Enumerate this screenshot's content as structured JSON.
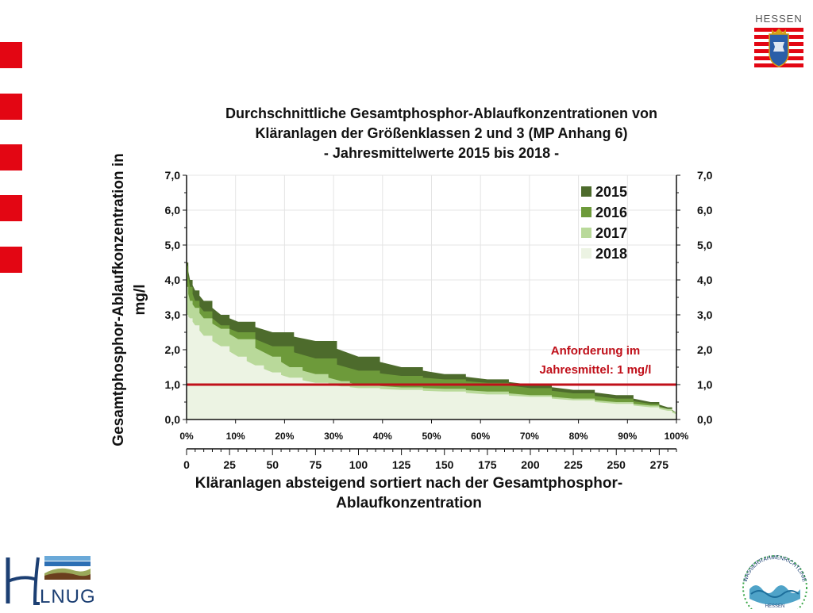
{
  "header": {
    "logo_word": "HESSEN"
  },
  "footer": {
    "hlnug_logo_text": "LNUG",
    "wrrl_logo_text": "WASSERRAHMENRICHTLINIE",
    "wrrl_bottom_text": "HESSEN"
  },
  "colors": {
    "y2015": "#4d6b2c",
    "y2016": "#6d9a3a",
    "y2017": "#b9d99a",
    "y2018": "#ecf3e3",
    "requirement_line": "#c0101a",
    "accent_red": "#e30613"
  },
  "chart_data": {
    "type": "area",
    "title_lines": [
      "Durchschnittliche Gesamtphosphor-Ablaufkonzentrationen von",
      "Kläranlagen der Größenklassen 2 und 3 (MP Anhang 6)",
      "- Jahresmittelwerte 2015 bis 2018 -"
    ],
    "ylabel_lines": [
      "Gesamtphosphor-Ablaufkonzentration in",
      "mg/l"
    ],
    "xlabel_lines": [
      "Kläranlagen absteigend sortiert nach der Gesamtphosphor-",
      "Ablaufkonzentration"
    ],
    "ylim": [
      0,
      7
    ],
    "yticks": [
      "0,0",
      "1,0",
      "2,0",
      "3,0",
      "4,0",
      "5,0",
      "6,0",
      "7,0"
    ],
    "xlim": [
      0,
      285
    ],
    "xticks_pct": [
      "0%",
      "10%",
      "20%",
      "30%",
      "40%",
      "50%",
      "60%",
      "70%",
      "80%",
      "90%",
      "100%"
    ],
    "xticks_count": [
      "0",
      "25",
      "50",
      "75",
      "100",
      "125",
      "150",
      "175",
      "200",
      "225",
      "250",
      "275"
    ],
    "grid": true,
    "legend_position": "top-right",
    "legend": [
      "2015",
      "2016",
      "2017",
      "2018"
    ],
    "series": [
      {
        "name": "2015",
        "x": [
          0,
          2,
          5,
          10,
          20,
          30,
          50,
          75,
          100,
          125,
          150,
          175,
          200,
          225,
          250,
          270,
          280,
          285
        ],
        "values": [
          4.5,
          4.0,
          3.7,
          3.4,
          3.0,
          2.8,
          2.5,
          2.25,
          1.8,
          1.5,
          1.3,
          1.15,
          1.0,
          0.85,
          0.7,
          0.5,
          0.35,
          0.2
        ]
      },
      {
        "name": "2016",
        "x": [
          0,
          2,
          5,
          10,
          20,
          30,
          50,
          75,
          100,
          125,
          150,
          175,
          200,
          225,
          250,
          270,
          280,
          285
        ],
        "values": [
          4.4,
          3.8,
          3.4,
          3.1,
          2.7,
          2.5,
          2.1,
          1.75,
          1.4,
          1.25,
          1.15,
          1.05,
          0.9,
          0.75,
          0.6,
          0.45,
          0.3,
          0.2
        ]
      },
      {
        "name": "2017",
        "x": [
          0,
          2,
          5,
          10,
          20,
          30,
          50,
          60,
          75,
          90,
          100,
          125,
          150,
          175,
          200,
          225,
          250,
          270,
          280,
          285
        ],
        "values": [
          3.8,
          3.4,
          3.2,
          2.9,
          2.6,
          2.3,
          1.8,
          1.5,
          1.3,
          1.1,
          1.0,
          0.92,
          0.88,
          0.8,
          0.7,
          0.6,
          0.5,
          0.4,
          0.3,
          0.2
        ]
      },
      {
        "name": "2018",
        "x": [
          0,
          2,
          5,
          10,
          20,
          30,
          40,
          50,
          60,
          75,
          90,
          100,
          125,
          150,
          175,
          200,
          225,
          250,
          270,
          280,
          285
        ],
        "values": [
          3.0,
          2.9,
          2.7,
          2.4,
          2.1,
          1.8,
          1.55,
          1.35,
          1.2,
          1.05,
          0.95,
          0.9,
          0.85,
          0.8,
          0.72,
          0.65,
          0.55,
          0.45,
          0.35,
          0.25,
          0.15
        ]
      }
    ],
    "reference_line": {
      "value": 1.0,
      "label_lines": [
        "Anforderung im",
        "Jahresmittel: 1 mg/l"
      ]
    }
  }
}
